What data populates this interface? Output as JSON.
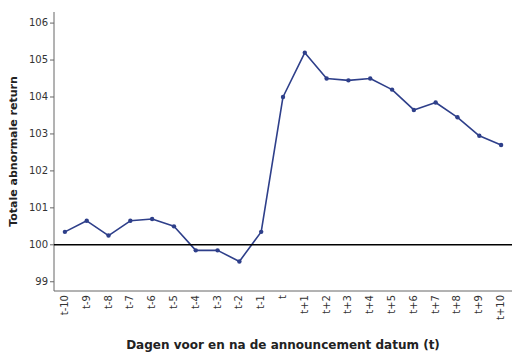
{
  "chart_data": {
    "type": "line",
    "xlabel": "Dagen voor en na de announcement datum (t)",
    "ylabel": "Totale abnormale return",
    "categories": [
      "t-10",
      "t-9",
      "t-8",
      "t-7",
      "t-6",
      "t-5",
      "t-4",
      "t-3",
      "t-2",
      "t-1",
      "t",
      "t+1",
      "t+2",
      "t+3",
      "t+4",
      "t+5",
      "t+6",
      "t+7",
      "t+8",
      "t+9",
      "t+10"
    ],
    "values": [
      100.35,
      100.65,
      100.25,
      100.65,
      100.7,
      100.5,
      99.85,
      99.85,
      99.55,
      100.35,
      104.0,
      105.2,
      104.5,
      104.45,
      104.5,
      104.2,
      103.65,
      103.85,
      103.45,
      102.95,
      102.7
    ],
    "hline": 100,
    "ylim": [
      98.75,
      106.3
    ],
    "yticks": [
      99,
      100,
      101,
      102,
      103,
      104,
      105,
      106
    ],
    "color": "#2e3f8a",
    "marker": "circle",
    "grid": false
  }
}
